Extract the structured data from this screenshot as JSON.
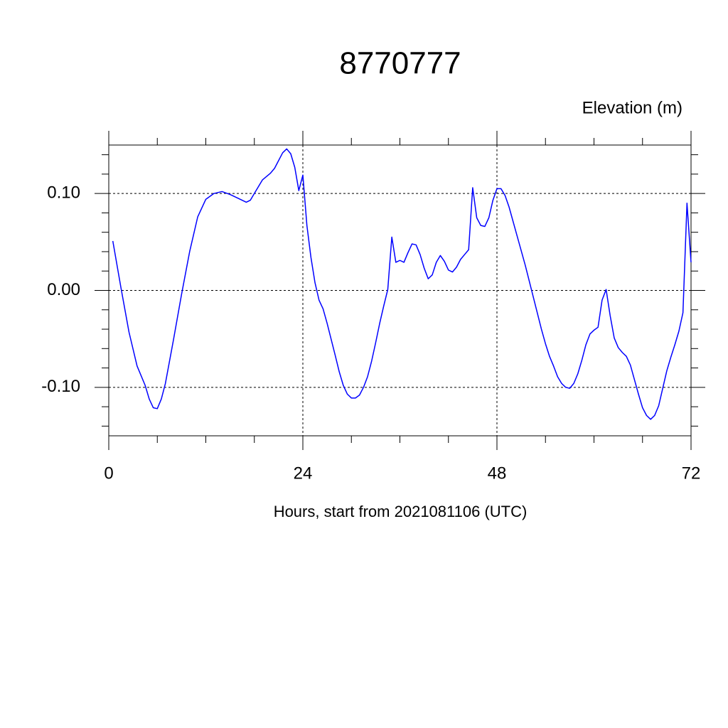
{
  "chart_data": {
    "type": "line",
    "title": "8770777",
    "y_label": "Elevation (m)",
    "x_label": "Hours, start from 2021081106 (UTC)",
    "xlim": [
      0,
      72
    ],
    "xticks": [
      0,
      24,
      48,
      72
    ],
    "x_minor_ticks": [
      6,
      12,
      18,
      30,
      36,
      42,
      54,
      60,
      66
    ],
    "ylim": [
      -0.15,
      0.15
    ],
    "yticks": [
      {
        "value": 0.1,
        "label": "0.10"
      },
      {
        "value": 0.0,
        "label": "0.00"
      },
      {
        "value": -0.1,
        "label": "-0.10"
      }
    ],
    "y_minor_ticks": [
      -0.14,
      -0.12,
      -0.08,
      -0.06,
      -0.04,
      -0.02,
      0.02,
      0.04,
      0.06,
      0.08,
      0.12,
      0.14
    ],
    "grid": true,
    "series": [
      {
        "color": "#0000ff",
        "x": [
          0.5,
          1.5,
          2.5,
          3.5,
          4.5,
          5.0,
          5.5,
          6.0,
          6.5,
          7.0,
          8.0,
          9.0,
          10,
          11,
          12,
          13,
          14,
          15,
          16,
          17,
          17.5,
          18,
          19,
          20,
          20.5,
          21.5,
          22,
          22.5,
          23,
          23.5,
          24,
          24.5,
          25,
          25.5,
          26,
          26.5,
          27,
          28,
          28.5,
          29,
          29.5,
          30,
          30.5,
          31,
          31.5,
          32,
          32.5,
          33,
          33.5,
          34,
          34.5,
          35,
          35.5,
          36,
          36.5,
          37,
          37.5,
          38,
          38.5,
          39,
          39.5,
          40,
          40.5,
          41,
          41.5,
          42,
          42.5,
          43,
          43.5,
          44,
          44.5,
          45,
          45.5,
          46,
          46.5,
          47,
          47.5,
          48,
          48.5,
          49,
          49.5,
          50.5,
          51.5,
          52.5,
          53.5,
          54,
          54.5,
          55,
          55.5,
          56,
          56.5,
          57,
          57.5,
          58,
          58.5,
          59,
          59.5,
          60,
          60.5,
          61,
          61.5,
          62,
          62.5,
          63,
          63.5,
          64,
          64.5,
          65,
          65.5,
          66,
          66.5,
          67,
          67.5,
          68,
          68.5,
          69,
          69.5,
          70,
          70.5,
          71,
          71.5,
          72
        ],
        "values": [
          0.051,
          0.003,
          -0.043,
          -0.078,
          -0.098,
          -0.112,
          -0.121,
          -0.122,
          -0.112,
          -0.096,
          -0.051,
          -0.004,
          0.04,
          0.076,
          0.094,
          0.1,
          0.102,
          0.099,
          0.095,
          0.091,
          0.093,
          0.1,
          0.114,
          0.121,
          0.126,
          0.142,
          0.146,
          0.141,
          0.127,
          0.103,
          0.119,
          0.067,
          0.034,
          0.008,
          -0.01,
          -0.019,
          -0.034,
          -0.067,
          -0.084,
          -0.098,
          -0.107,
          -0.111,
          -0.111,
          -0.108,
          -0.1,
          -0.089,
          -0.073,
          -0.054,
          -0.034,
          -0.016,
          0.001,
          0.055,
          0.029,
          0.031,
          0.029,
          0.039,
          0.048,
          0.047,
          0.037,
          0.023,
          0.012,
          0.016,
          0.029,
          0.036,
          0.03,
          0.021,
          0.019,
          0.024,
          0.032,
          0.037,
          0.042,
          0.106,
          0.075,
          0.067,
          0.066,
          0.075,
          0.093,
          0.105,
          0.105,
          0.098,
          0.086,
          0.056,
          0.026,
          -0.007,
          -0.04,
          -0.055,
          -0.068,
          -0.078,
          -0.089,
          -0.096,
          -0.1,
          -0.101,
          -0.096,
          -0.086,
          -0.072,
          -0.056,
          -0.045,
          -0.041,
          -0.038,
          -0.01,
          0.001,
          -0.026,
          -0.049,
          -0.059,
          -0.064,
          -0.068,
          -0.077,
          -0.092,
          -0.107,
          -0.121,
          -0.129,
          -0.133,
          -0.129,
          -0.119,
          -0.101,
          -0.083,
          -0.069,
          -0.056,
          -0.042,
          -0.023,
          0.09,
          0.029
        ]
      }
    ]
  }
}
